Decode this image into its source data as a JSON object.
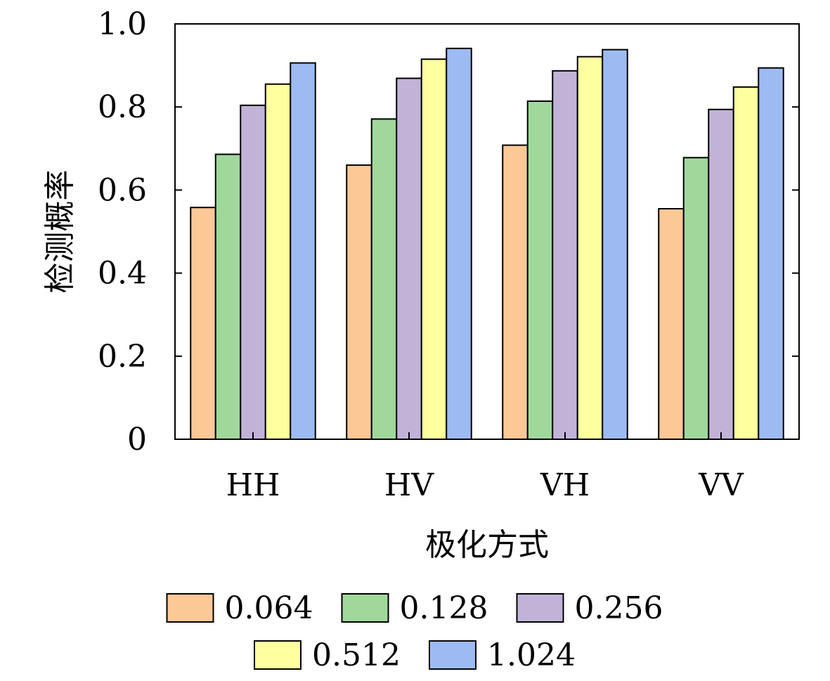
{
  "chart_data": {
    "type": "bar",
    "xlabel": "极化方式",
    "ylabel": "检测概率",
    "ylim": [
      0,
      1.0
    ],
    "yticks": [
      0,
      0.2,
      0.4,
      0.6,
      0.8,
      1.0
    ],
    "ytick_labels": [
      "0",
      "0.2",
      "0.4",
      "0.6",
      "0.8",
      "1.0"
    ],
    "categories": [
      "HH",
      "HV",
      "VH",
      "VV"
    ],
    "grid": false,
    "legend_position": "bottom",
    "series": [
      {
        "name": "0.064",
        "color": "#fcc896",
        "values": [
          0.558,
          0.66,
          0.708,
          0.555
        ]
      },
      {
        "name": "0.128",
        "color": "#a0d89c",
        "values": [
          0.686,
          0.771,
          0.814,
          0.678
        ]
      },
      {
        "name": "0.256",
        "color": "#c1b3d8",
        "values": [
          0.804,
          0.869,
          0.887,
          0.794
        ]
      },
      {
        "name": "0.512",
        "color": "#feff9e",
        "values": [
          0.855,
          0.915,
          0.921,
          0.848
        ]
      },
      {
        "name": "1.024",
        "color": "#9dbbf2",
        "values": [
          0.906,
          0.941,
          0.938,
          0.894
        ]
      }
    ]
  }
}
